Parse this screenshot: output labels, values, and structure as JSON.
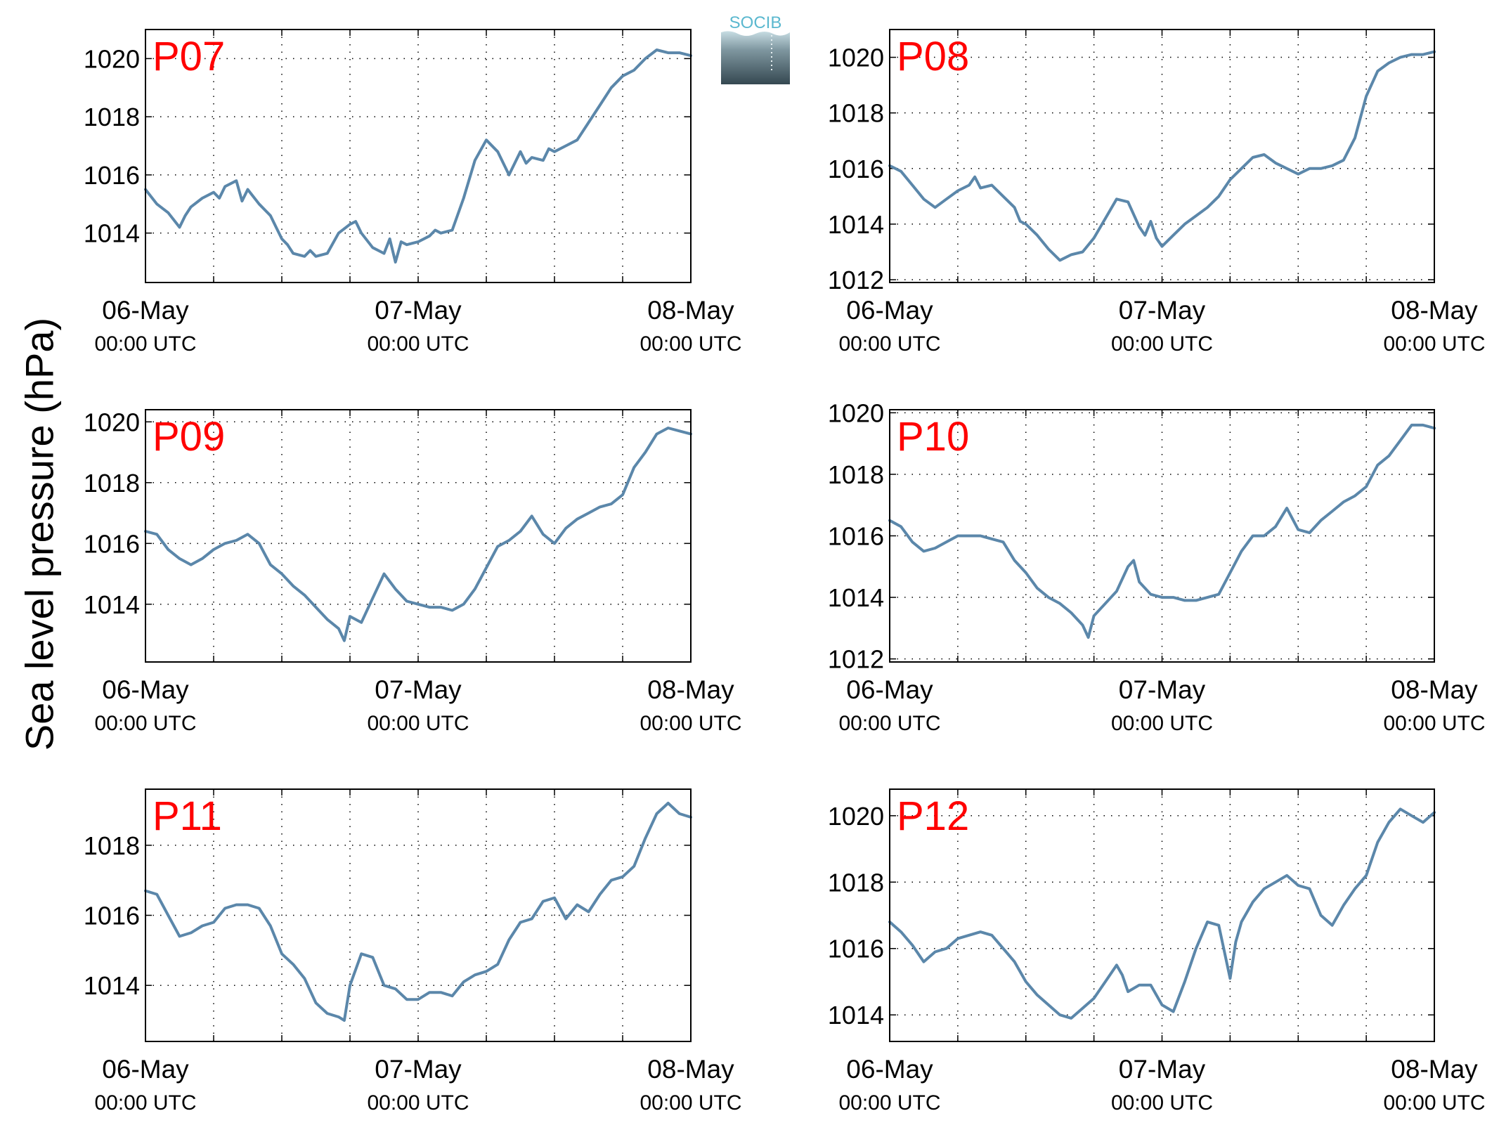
{
  "figure": {
    "ylabel": "Sea level pressure (hPa)",
    "logo_text": "SOCIB",
    "line_color": "#5b87aa",
    "title_color": "#ff0000"
  },
  "chart_data": [
    {
      "type": "line",
      "title": "P07",
      "x_ticks": [
        {
          "date": "06-May",
          "time": "00:00 UTC"
        },
        {
          "date": "07-May",
          "time": "00:00 UTC"
        },
        {
          "date": "08-May",
          "time": "00:00 UTC"
        }
      ],
      "x_unit": "hours since 06-May 00:00 UTC",
      "xlim": [
        0,
        48
      ],
      "ylim": [
        1012.3,
        1021.0
      ],
      "yticks": [
        1014,
        1016,
        1018,
        1020
      ],
      "grid": true,
      "x": [
        0,
        1,
        2,
        3,
        3.5,
        4,
        5,
        6,
        6.5,
        7,
        8,
        8.5,
        9,
        10,
        11,
        11.5,
        12,
        12.5,
        13,
        14,
        14.5,
        15,
        16,
        17,
        18,
        18.5,
        19,
        20,
        21,
        21.5,
        22,
        22.5,
        23,
        24,
        25,
        25.5,
        26,
        27,
        28,
        29,
        30,
        31,
        32,
        33,
        33.5,
        34,
        35,
        35.5,
        36,
        37,
        38,
        39,
        40,
        41,
        42,
        43,
        44,
        45,
        46,
        47,
        48
      ],
      "values": [
        1015.5,
        1015.0,
        1014.7,
        1014.2,
        1014.6,
        1014.9,
        1015.2,
        1015.4,
        1015.2,
        1015.6,
        1015.8,
        1015.1,
        1015.5,
        1015.0,
        1014.6,
        1014.2,
        1013.8,
        1013.6,
        1013.3,
        1013.2,
        1013.4,
        1013.2,
        1013.3,
        1014.0,
        1014.3,
        1014.4,
        1014.0,
        1013.5,
        1013.3,
        1013.8,
        1013.0,
        1013.7,
        1013.6,
        1013.7,
        1013.9,
        1014.1,
        1014.0,
        1014.1,
        1015.2,
        1016.5,
        1017.2,
        1016.8,
        1016.0,
        1016.8,
        1016.4,
        1016.6,
        1016.5,
        1016.9,
        1016.8,
        1017.0,
        1017.2,
        1017.8,
        1018.4,
        1019.0,
        1019.4,
        1019.6,
        1020.0,
        1020.3,
        1020.2,
        1020.2,
        1020.1
      ]
    },
    {
      "type": "line",
      "title": "P08",
      "x_ticks": [
        {
          "date": "06-May",
          "time": "00:00 UTC"
        },
        {
          "date": "07-May",
          "time": "00:00 UTC"
        },
        {
          "date": "08-May",
          "time": "00:00 UTC"
        }
      ],
      "x_unit": "hours since 06-May 00:00 UTC",
      "xlim": [
        0,
        48
      ],
      "ylim": [
        1011.9,
        1021.0
      ],
      "yticks": [
        1012,
        1014,
        1016,
        1018,
        1020
      ],
      "grid": true,
      "x": [
        0,
        1,
        2,
        3,
        4,
        5,
        6,
        7,
        7.5,
        8,
        9,
        10,
        11,
        11.5,
        12,
        13,
        14,
        15,
        16,
        17,
        18,
        19,
        20,
        21,
        22,
        22.5,
        23,
        23.5,
        24,
        25,
        26,
        27,
        28,
        29,
        30,
        31,
        32,
        33,
        34,
        35,
        36,
        37,
        38,
        39,
        40,
        41,
        42,
        43,
        44,
        45,
        46,
        47,
        48
      ],
      "values": [
        1016.1,
        1015.9,
        1015.4,
        1014.9,
        1014.6,
        1014.9,
        1015.2,
        1015.4,
        1015.7,
        1015.3,
        1015.4,
        1015.0,
        1014.6,
        1014.1,
        1014.0,
        1013.6,
        1013.1,
        1012.7,
        1012.9,
        1013.0,
        1013.5,
        1014.2,
        1014.9,
        1014.8,
        1013.9,
        1013.6,
        1014.1,
        1013.5,
        1013.2,
        1013.6,
        1014.0,
        1014.3,
        1014.6,
        1015.0,
        1015.6,
        1016.0,
        1016.4,
        1016.5,
        1016.2,
        1016.0,
        1015.8,
        1016.0,
        1016.0,
        1016.1,
        1016.3,
        1017.1,
        1018.6,
        1019.5,
        1019.8,
        1020.0,
        1020.1,
        1020.1,
        1020.2
      ]
    },
    {
      "type": "line",
      "title": "P09",
      "x_ticks": [
        {
          "date": "06-May",
          "time": "00:00 UTC"
        },
        {
          "date": "07-May",
          "time": "00:00 UTC"
        },
        {
          "date": "08-May",
          "time": "00:00 UTC"
        }
      ],
      "x_unit": "hours since 06-May 00:00 UTC",
      "xlim": [
        0,
        48
      ],
      "ylim": [
        1012.1,
        1020.4
      ],
      "yticks": [
        1014,
        1016,
        1018,
        1020
      ],
      "grid": true,
      "x": [
        0,
        1,
        2,
        3,
        4,
        5,
        6,
        7,
        8,
        9,
        10,
        11,
        12,
        13,
        14,
        15,
        16,
        17,
        17.5,
        18,
        19,
        20,
        21,
        22,
        23,
        24,
        25,
        26,
        27,
        28,
        29,
        30,
        31,
        32,
        33,
        34,
        35,
        36,
        37,
        38,
        39,
        40,
        41,
        42,
        43,
        44,
        45,
        46,
        47,
        48
      ],
      "values": [
        1016.4,
        1016.3,
        1015.8,
        1015.5,
        1015.3,
        1015.5,
        1015.8,
        1016.0,
        1016.1,
        1016.3,
        1016.0,
        1015.3,
        1015.0,
        1014.6,
        1014.3,
        1013.9,
        1013.5,
        1013.2,
        1012.8,
        1013.6,
        1013.4,
        1014.2,
        1015.0,
        1014.5,
        1014.1,
        1014.0,
        1013.9,
        1013.9,
        1013.8,
        1014.0,
        1014.5,
        1015.2,
        1015.9,
        1016.1,
        1016.4,
        1016.9,
        1016.3,
        1016.0,
        1016.5,
        1016.8,
        1017.0,
        1017.2,
        1017.3,
        1017.6,
        1018.5,
        1019.0,
        1019.6,
        1019.8,
        1019.7,
        1019.6
      ]
    },
    {
      "type": "line",
      "title": "P10",
      "x_ticks": [
        {
          "date": "06-May",
          "time": "00:00 UTC"
        },
        {
          "date": "07-May",
          "time": "00:00 UTC"
        },
        {
          "date": "08-May",
          "time": "00:00 UTC"
        }
      ],
      "x_unit": "hours since 06-May 00:00 UTC",
      "xlim": [
        0,
        48
      ],
      "ylim": [
        1011.9,
        1020.1
      ],
      "yticks": [
        1012,
        1014,
        1016,
        1018,
        1020
      ],
      "grid": true,
      "x": [
        0,
        1,
        2,
        3,
        4,
        5,
        6,
        7,
        8,
        9,
        10,
        11,
        12,
        13,
        14,
        15,
        16,
        17,
        17.5,
        18,
        19,
        20,
        21,
        21.5,
        22,
        23,
        24,
        25,
        26,
        27,
        28,
        29,
        30,
        31,
        32,
        33,
        34,
        35,
        36,
        37,
        38,
        39,
        40,
        41,
        42,
        43,
        44,
        45,
        46,
        47,
        48
      ],
      "values": [
        1016.5,
        1016.3,
        1015.8,
        1015.5,
        1015.6,
        1015.8,
        1016.0,
        1016.0,
        1016.0,
        1015.9,
        1015.8,
        1015.2,
        1014.8,
        1014.3,
        1014.0,
        1013.8,
        1013.5,
        1013.1,
        1012.7,
        1013.4,
        1013.8,
        1014.2,
        1015.0,
        1015.2,
        1014.5,
        1014.1,
        1014.0,
        1014.0,
        1013.9,
        1013.9,
        1014.0,
        1014.1,
        1014.8,
        1015.5,
        1016.0,
        1016.0,
        1016.3,
        1016.9,
        1016.2,
        1016.1,
        1016.5,
        1016.8,
        1017.1,
        1017.3,
        1017.6,
        1018.3,
        1018.6,
        1019.1,
        1019.6,
        1019.6,
        1019.5
      ]
    },
    {
      "type": "line",
      "title": "P11",
      "x_ticks": [
        {
          "date": "06-May",
          "time": "00:00 UTC"
        },
        {
          "date": "07-May",
          "time": "00:00 UTC"
        },
        {
          "date": "08-May",
          "time": "00:00 UTC"
        }
      ],
      "x_unit": "hours since 06-May 00:00 UTC",
      "xlim": [
        0,
        48
      ],
      "ylim": [
        1012.4,
        1019.6
      ],
      "yticks": [
        1014,
        1016,
        1018
      ],
      "grid": true,
      "x": [
        0,
        1,
        2,
        3,
        4,
        5,
        6,
        7,
        8,
        9,
        10,
        11,
        12,
        13,
        14,
        15,
        16,
        17,
        17.5,
        18,
        19,
        20,
        21,
        22,
        23,
        24,
        25,
        26,
        27,
        28,
        29,
        30,
        31,
        32,
        33,
        34,
        35,
        36,
        37,
        38,
        39,
        40,
        41,
        42,
        43,
        44,
        45,
        46,
        47,
        48
      ],
      "values": [
        1016.7,
        1016.6,
        1016.0,
        1015.4,
        1015.5,
        1015.7,
        1015.8,
        1016.2,
        1016.3,
        1016.3,
        1016.2,
        1015.7,
        1014.9,
        1014.6,
        1014.2,
        1013.5,
        1013.2,
        1013.1,
        1013.0,
        1014.0,
        1014.9,
        1014.8,
        1014.0,
        1013.9,
        1013.6,
        1013.6,
        1013.8,
        1013.8,
        1013.7,
        1014.1,
        1014.3,
        1014.4,
        1014.6,
        1015.3,
        1015.8,
        1015.9,
        1016.4,
        1016.5,
        1015.9,
        1016.3,
        1016.1,
        1016.6,
        1017.0,
        1017.1,
        1017.4,
        1018.2,
        1018.9,
        1019.2,
        1018.9,
        1018.8
      ]
    },
    {
      "type": "line",
      "title": "P12",
      "x_ticks": [
        {
          "date": "06-May",
          "time": "00:00 UTC"
        },
        {
          "date": "07-May",
          "time": "00:00 UTC"
        },
        {
          "date": "08-May",
          "time": "00:00 UTC"
        }
      ],
      "x_unit": "hours since 06-May 00:00 UTC",
      "xlim": [
        0,
        48
      ],
      "ylim": [
        1013.2,
        1020.8
      ],
      "yticks": [
        1014,
        1016,
        1018,
        1020
      ],
      "grid": true,
      "x": [
        0,
        1,
        2,
        3,
        4,
        5,
        6,
        7,
        8,
        9,
        10,
        11,
        12,
        13,
        14,
        15,
        16,
        17,
        18,
        19,
        20,
        20.5,
        21,
        22,
        23,
        24,
        25,
        26,
        27,
        28,
        29,
        30,
        30.5,
        31,
        32,
        33,
        34,
        35,
        36,
        37,
        38,
        39,
        40,
        41,
        42,
        43,
        44,
        45,
        46,
        47,
        48
      ],
      "values": [
        1016.8,
        1016.5,
        1016.1,
        1015.6,
        1015.9,
        1016.0,
        1016.3,
        1016.4,
        1016.5,
        1016.4,
        1016.0,
        1015.6,
        1015.0,
        1014.6,
        1014.3,
        1014.0,
        1013.9,
        1014.2,
        1014.5,
        1015.0,
        1015.5,
        1015.2,
        1014.7,
        1014.9,
        1014.9,
        1014.3,
        1014.1,
        1015.0,
        1016.0,
        1016.8,
        1016.7,
        1015.1,
        1016.2,
        1016.8,
        1017.4,
        1017.8,
        1018.0,
        1018.2,
        1017.9,
        1017.8,
        1017.0,
        1016.7,
        1017.3,
        1017.8,
        1018.2,
        1019.2,
        1019.8,
        1020.2,
        1020.0,
        1019.8,
        1020.1
      ]
    }
  ]
}
